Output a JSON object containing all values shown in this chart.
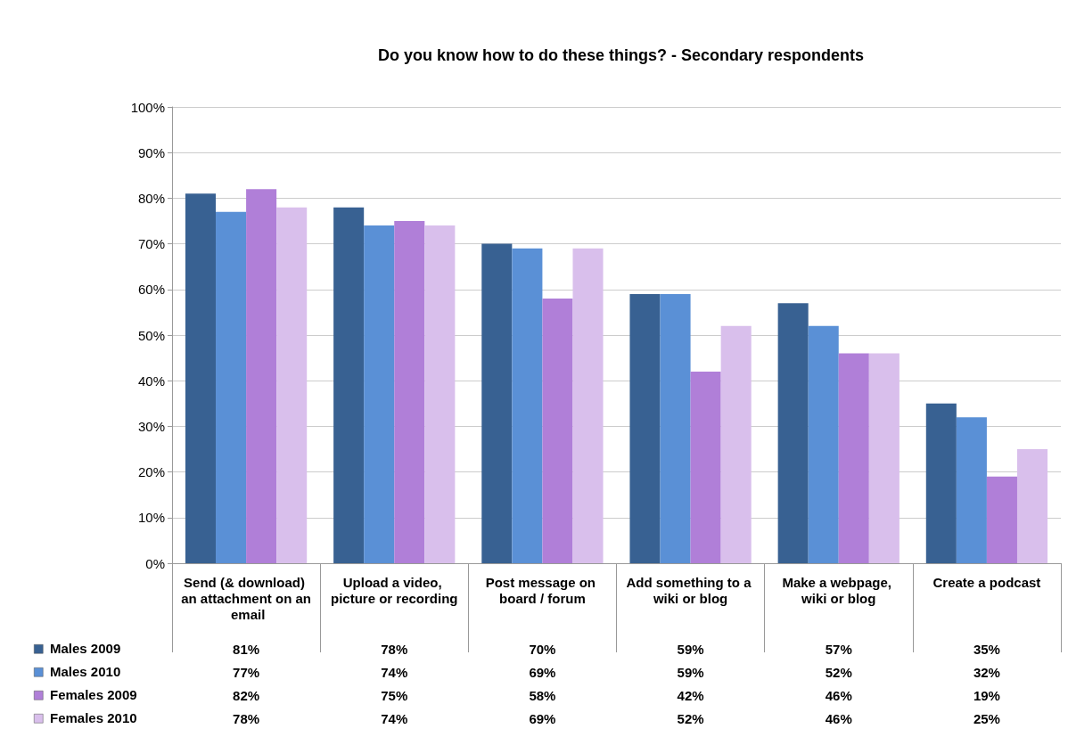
{
  "chart_data": {
    "type": "bar",
    "title": "Do you know how to do these things? - Secondary respondents",
    "categories": [
      "Send (& download) an attachment on an email",
      "Upload a video, picture or recording",
      "Post message on board / forum",
      "Add something to a wiki or blog",
      "Make a webpage, wiki or blog",
      "Create a podcast"
    ],
    "series": [
      {
        "name": "Males 2009",
        "color": "#386192",
        "values": [
          81,
          78,
          70,
          59,
          57,
          35
        ],
        "value_labels": [
          "81%",
          "78%",
          "70%",
          "59%",
          "57%",
          "35%"
        ]
      },
      {
        "name": "Males 2010",
        "color": "#5a90d6",
        "values": [
          77,
          74,
          69,
          59,
          52,
          32
        ],
        "value_labels": [
          "77%",
          "74%",
          "69%",
          "59%",
          "52%",
          "32%"
        ]
      },
      {
        "name": "Females 2009",
        "color": "#b07fd8",
        "values": [
          82,
          75,
          58,
          42,
          46,
          19
        ],
        "value_labels": [
          "82%",
          "75%",
          "58%",
          "42%",
          "46%",
          "19%"
        ]
      },
      {
        "name": "Females 2010",
        "color": "#d9bfec",
        "values": [
          78,
          74,
          69,
          52,
          46,
          25
        ],
        "value_labels": [
          "78%",
          "74%",
          "69%",
          "52%",
          "46%",
          "25%"
        ]
      }
    ],
    "ylim": [
      0,
      100
    ],
    "yticks": [
      {
        "value": 0,
        "label": "0%"
      },
      {
        "value": 10,
        "label": "10%"
      },
      {
        "value": 20,
        "label": "20%"
      },
      {
        "value": 30,
        "label": "30%"
      },
      {
        "value": 40,
        "label": "40%"
      },
      {
        "value": 50,
        "label": "50%"
      },
      {
        "value": 60,
        "label": "60%"
      },
      {
        "value": 70,
        "label": "70%"
      },
      {
        "value": 80,
        "label": "80%"
      },
      {
        "value": 90,
        "label": "90%"
      },
      {
        "value": 100,
        "label": "100%"
      }
    ],
    "grid": "y",
    "legend": "bottom left"
  }
}
